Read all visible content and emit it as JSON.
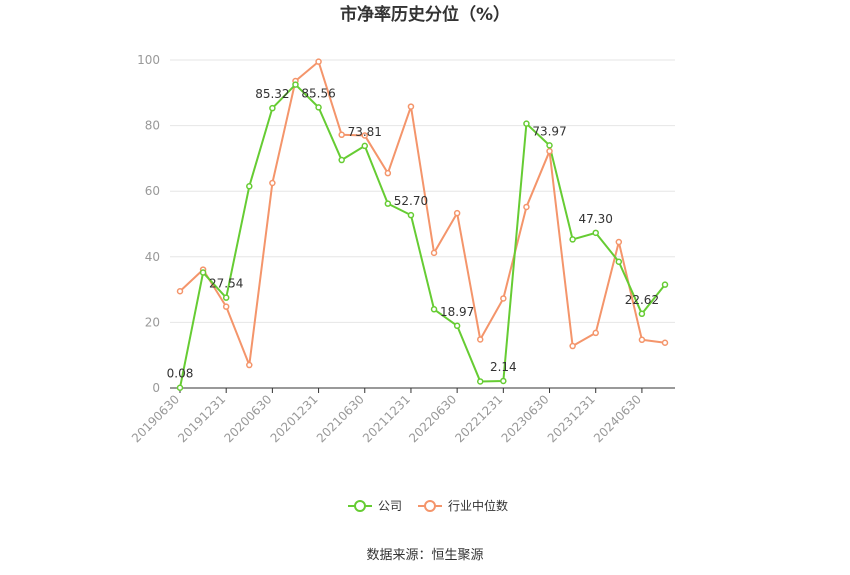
{
  "chart_data": {
    "type": "line",
    "title": "市净率历史分位（%）",
    "xlabel": "",
    "ylabel": "",
    "ylim": [
      0,
      100
    ],
    "yticks": [
      0,
      20,
      40,
      60,
      80,
      100
    ],
    "grid": true,
    "legend_position": "bottom-center",
    "categories": [
      "20190630",
      "20190930",
      "20191231",
      "20200331",
      "20200630",
      "20200930",
      "20201231",
      "20210331",
      "20210630",
      "20210930",
      "20211231",
      "20220331",
      "20220630",
      "20220930",
      "20221231",
      "20230331",
      "20230630",
      "20230930",
      "20231231",
      "20240331",
      "20240630",
      "20240930"
    ],
    "x_tick_labels": [
      "20190630",
      "20191231",
      "20200630",
      "20201231",
      "20210630",
      "20211231",
      "20220630",
      "20221231",
      "20230630",
      "20231231",
      "20240630"
    ],
    "series": [
      {
        "name": "公司",
        "color": "#66cc33",
        "values": [
          0.08,
          35.2,
          27.54,
          61.5,
          85.32,
          92.5,
          85.56,
          69.5,
          73.81,
          56.2,
          52.7,
          24.0,
          18.97,
          2.0,
          2.14,
          80.6,
          73.97,
          45.3,
          47.3,
          38.5,
          22.62,
          31.5
        ]
      },
      {
        "name": "行业中位数",
        "color": "#f4956b",
        "values": [
          29.5,
          36.1,
          24.8,
          7.0,
          62.5,
          93.6,
          99.5,
          77.2,
          77.0,
          65.5,
          85.8,
          41.2,
          53.3,
          14.8,
          27.3,
          55.2,
          72.2,
          12.8,
          16.8,
          44.5,
          14.7,
          13.8
        ]
      }
    ],
    "data_labels": [
      {
        "series": 0,
        "index": 0,
        "text": "0.08"
      },
      {
        "series": 0,
        "index": 2,
        "text": "27.54"
      },
      {
        "series": 0,
        "index": 4,
        "text": "85.32"
      },
      {
        "series": 0,
        "index": 6,
        "text": "85.56"
      },
      {
        "series": 0,
        "index": 8,
        "text": "73.81"
      },
      {
        "series": 0,
        "index": 10,
        "text": "52.70"
      },
      {
        "series": 0,
        "index": 12,
        "text": "18.97"
      },
      {
        "series": 0,
        "index": 14,
        "text": "2.14"
      },
      {
        "series": 0,
        "index": 16,
        "text": "73.97"
      },
      {
        "series": 0,
        "index": 18,
        "text": "47.30"
      },
      {
        "series": 0,
        "index": 20,
        "text": "22.62"
      }
    ]
  },
  "source": "数据来源：恒生聚源"
}
